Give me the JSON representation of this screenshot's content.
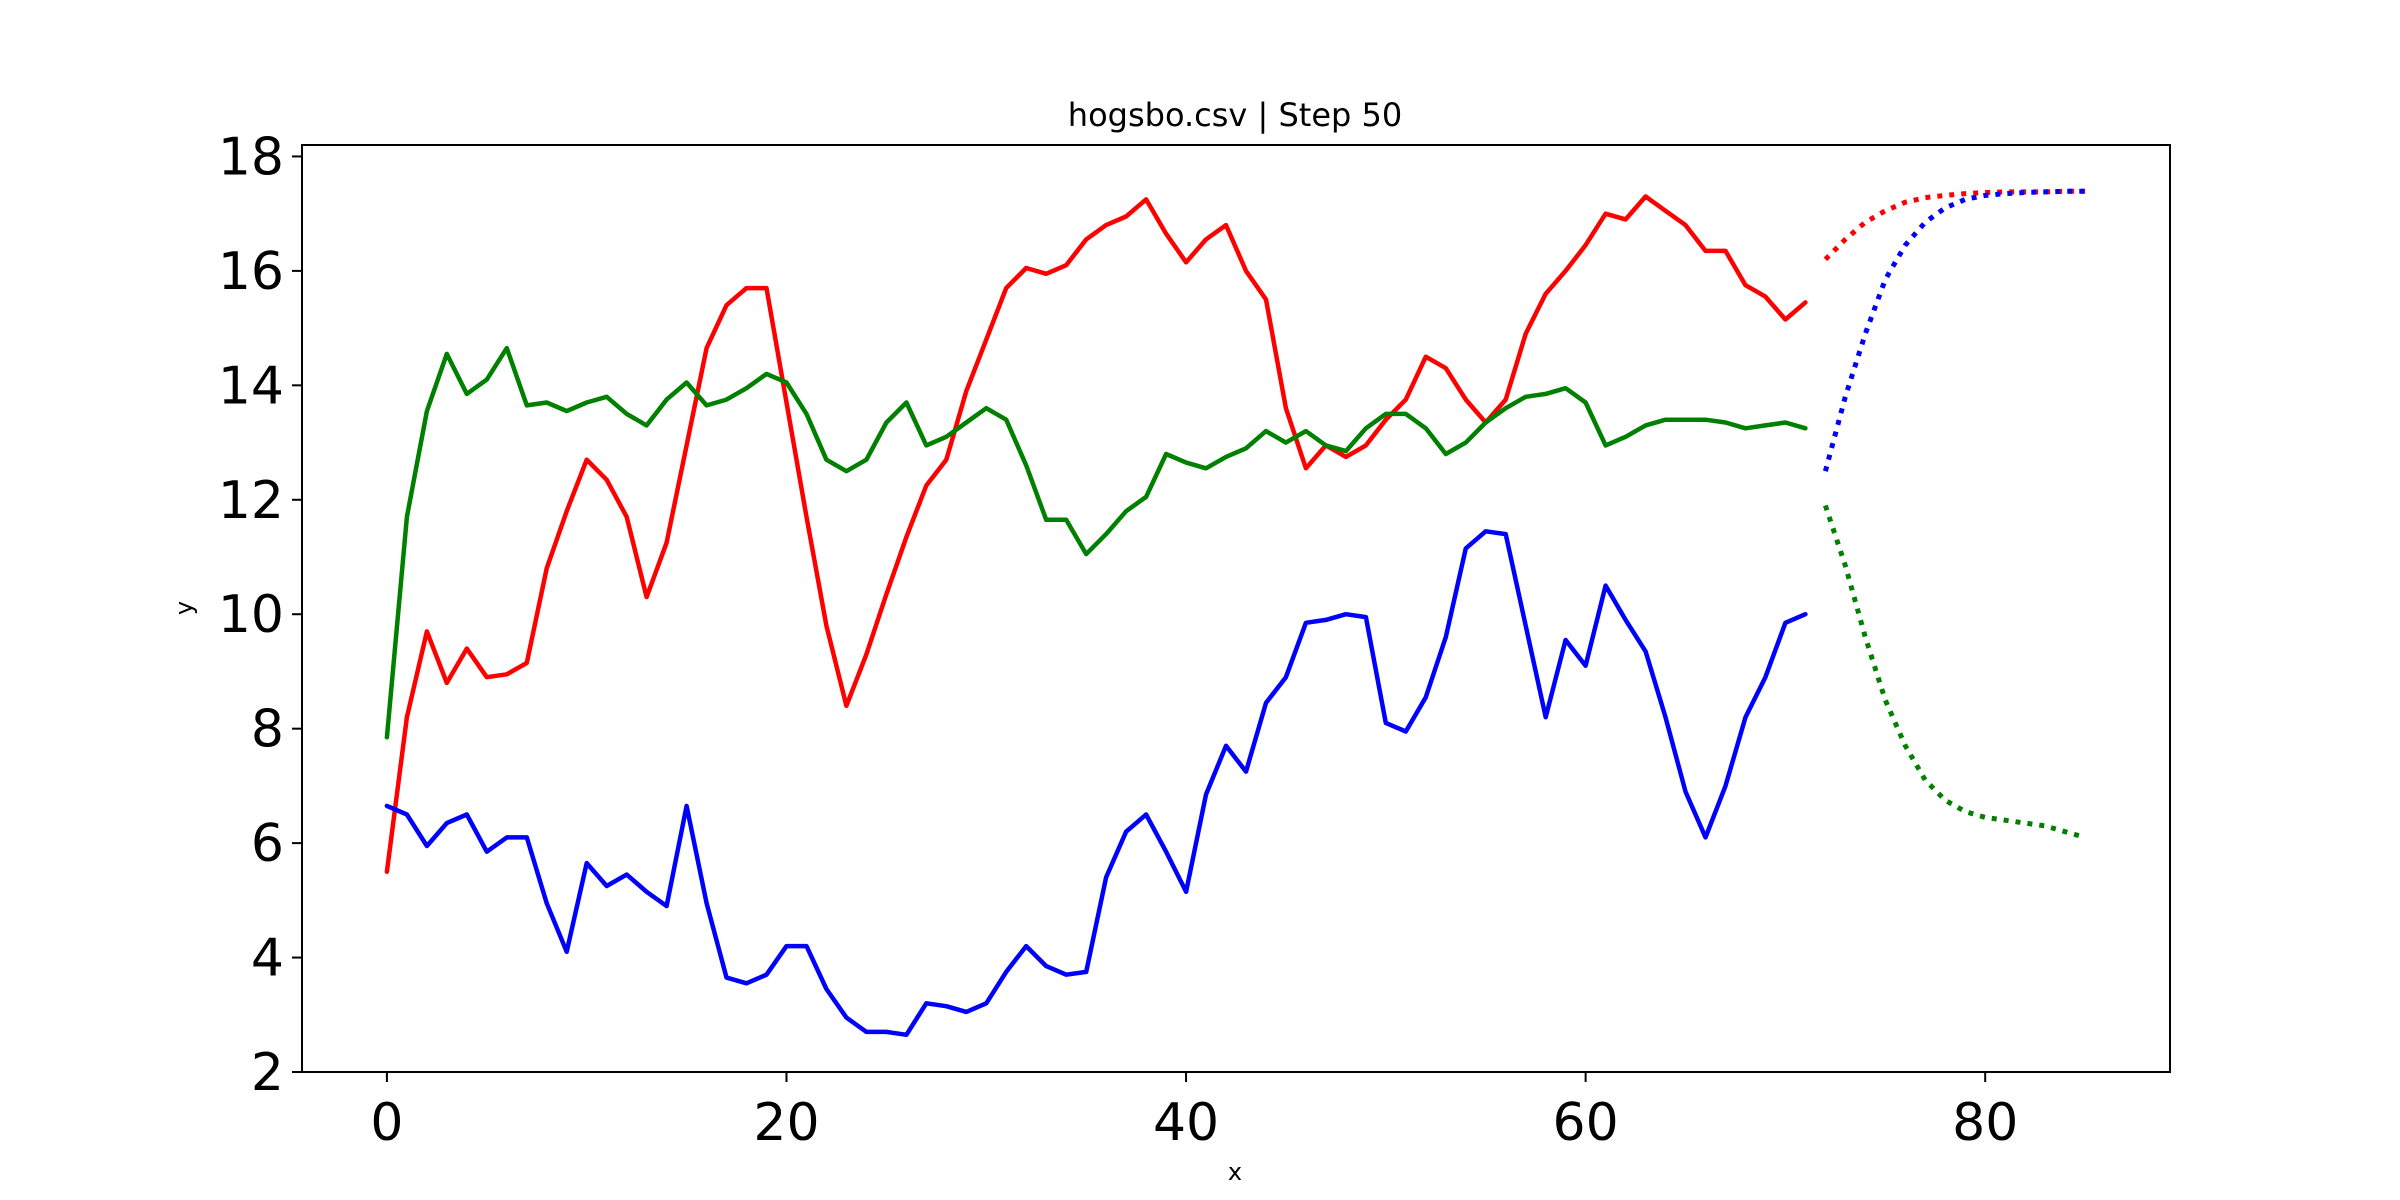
{
  "chart_data": {
    "type": "line",
    "title": "hogsbo.csv | Step 50",
    "xlabel": "x",
    "ylabel": "y",
    "xlim": [
      -4.25,
      89.25
    ],
    "ylim": [
      2,
      18.2
    ],
    "xticks": [
      0,
      20,
      40,
      60,
      80
    ],
    "yticks": [
      2,
      4,
      6,
      8,
      10,
      12,
      14,
      16,
      18
    ],
    "grid": false,
    "series": [
      {
        "color": "#ff0000",
        "style": "solid",
        "x_start": 0,
        "values": [
          5.5,
          8.2,
          9.7,
          8.8,
          9.4,
          8.9,
          8.95,
          9.15,
          10.8,
          11.8,
          12.7,
          12.35,
          11.7,
          10.3,
          11.25,
          12.95,
          14.65,
          15.4,
          15.7,
          15.7,
          13.7,
          11.7,
          9.8,
          8.4,
          9.3,
          10.35,
          11.35,
          12.25,
          12.7,
          13.9,
          14.8,
          15.7,
          16.05,
          15.95,
          16.1,
          16.55,
          16.8,
          16.95,
          17.25,
          16.65,
          16.15,
          16.55,
          16.8,
          16.0,
          15.5,
          13.6,
          12.55,
          12.95,
          12.75,
          12.95,
          13.4,
          13.75,
          14.5,
          14.3,
          13.75,
          13.35,
          13.75,
          14.9,
          15.6,
          16.0,
          16.45,
          17.0,
          16.9,
          17.3,
          17.05,
          16.8,
          16.35,
          16.35,
          15.75,
          15.55,
          15.15,
          15.45
        ]
      },
      {
        "color": "#008000",
        "style": "solid",
        "x_start": 0,
        "values": [
          7.85,
          11.7,
          13.55,
          14.55,
          13.85,
          14.1,
          14.65,
          13.65,
          13.7,
          13.55,
          13.7,
          13.8,
          13.5,
          13.3,
          13.75,
          14.05,
          13.65,
          13.75,
          13.95,
          14.2,
          14.05,
          13.5,
          12.7,
          12.5,
          12.7,
          13.35,
          13.7,
          12.95,
          13.1,
          13.35,
          13.6,
          13.4,
          12.6,
          11.65,
          11.65,
          11.05,
          11.4,
          11.8,
          12.05,
          12.8,
          12.65,
          12.55,
          12.75,
          12.9,
          13.2,
          13.0,
          13.2,
          12.95,
          12.85,
          13.25,
          13.5,
          13.5,
          13.25,
          12.8,
          13.0,
          13.35,
          13.6,
          13.8,
          13.85,
          13.95,
          13.7,
          12.95,
          13.1,
          13.3,
          13.4,
          13.4,
          13.4,
          13.35,
          13.25,
          13.3,
          13.35,
          13.25
        ]
      },
      {
        "color": "#0000ff",
        "style": "solid",
        "x_start": 0,
        "values": [
          6.65,
          6.5,
          5.95,
          6.35,
          6.5,
          5.85,
          6.1,
          6.1,
          4.95,
          4.1,
          5.65,
          5.25,
          5.45,
          5.15,
          4.9,
          6.65,
          4.95,
          3.65,
          3.55,
          3.7,
          4.2,
          4.2,
          3.45,
          2.95,
          2.7,
          2.7,
          2.65,
          3.2,
          3.15,
          3.05,
          3.2,
          3.75,
          4.2,
          3.85,
          3.7,
          3.75,
          5.4,
          6.2,
          6.5,
          5.85,
          5.15,
          6.85,
          7.7,
          7.25,
          8.45,
          8.9,
          9.85,
          9.9,
          10.0,
          9.95,
          8.1,
          7.95,
          8.55,
          9.6,
          11.15,
          11.45,
          11.4,
          9.8,
          8.2,
          9.55,
          9.1,
          10.5,
          9.9,
          9.35,
          8.2,
          6.9,
          6.1,
          7.0,
          8.2,
          8.9,
          9.85,
          10.0
        ]
      },
      {
        "color": "#ff0000",
        "style": "dotted",
        "x_start": 72,
        "values": [
          16.2,
          16.55,
          16.85,
          17.05,
          17.2,
          17.28,
          17.32,
          17.35,
          17.37,
          17.38,
          17.38,
          17.38,
          17.39,
          17.39
        ]
      },
      {
        "color": "#0000ff",
        "style": "dotted",
        "x_start": 72,
        "values": [
          12.5,
          13.8,
          14.9,
          15.85,
          16.45,
          16.85,
          17.1,
          17.25,
          17.32,
          17.35,
          17.37,
          17.38,
          17.39,
          17.39
        ]
      },
      {
        "color": "#008000",
        "style": "dotted",
        "x_start": 72,
        "values": [
          11.9,
          10.85,
          9.6,
          8.5,
          7.7,
          7.1,
          6.75,
          6.55,
          6.45,
          6.4,
          6.35,
          6.3,
          6.2,
          6.1
        ]
      }
    ]
  }
}
